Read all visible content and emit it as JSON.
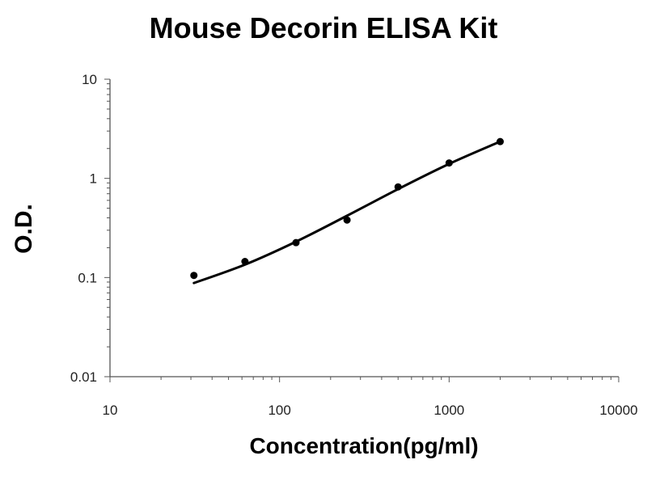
{
  "chart_data": {
    "type": "scatter",
    "title": "Mouse Decorin ELISA Kit",
    "xlabel": "Concentration(pg/ml)",
    "ylabel": "O.D.",
    "x_scale": "log",
    "y_scale": "log",
    "xlim": [
      10,
      10000
    ],
    "ylim": [
      0.01,
      10
    ],
    "x_ticks": [
      "10",
      "100",
      "1000",
      "10000"
    ],
    "y_ticks": [
      "0.01",
      "0.1",
      "1",
      "10"
    ],
    "grid": false,
    "legend": "none",
    "series": [
      {
        "points": [
          {
            "x": 31.25,
            "y": 0.105
          },
          {
            "x": 62.5,
            "y": 0.145
          },
          {
            "x": 125,
            "y": 0.225
          },
          {
            "x": 250,
            "y": 0.38
          },
          {
            "x": 500,
            "y": 0.82
          },
          {
            "x": 1000,
            "y": 1.43
          },
          {
            "x": 2000,
            "y": 2.35
          }
        ],
        "fit_curve": {
          "type": "smooth",
          "points": [
            {
              "x": 31.25,
              "y": 0.088
            },
            {
              "x": 62.5,
              "y": 0.135
            },
            {
              "x": 125,
              "y": 0.23
            },
            {
              "x": 250,
              "y": 0.42
            },
            {
              "x": 500,
              "y": 0.78
            },
            {
              "x": 1000,
              "y": 1.4
            },
            {
              "x": 2000,
              "y": 2.35
            }
          ]
        }
      }
    ],
    "colors": {
      "marker": "#000000",
      "curve": "#000000",
      "axis": "#555555"
    }
  }
}
